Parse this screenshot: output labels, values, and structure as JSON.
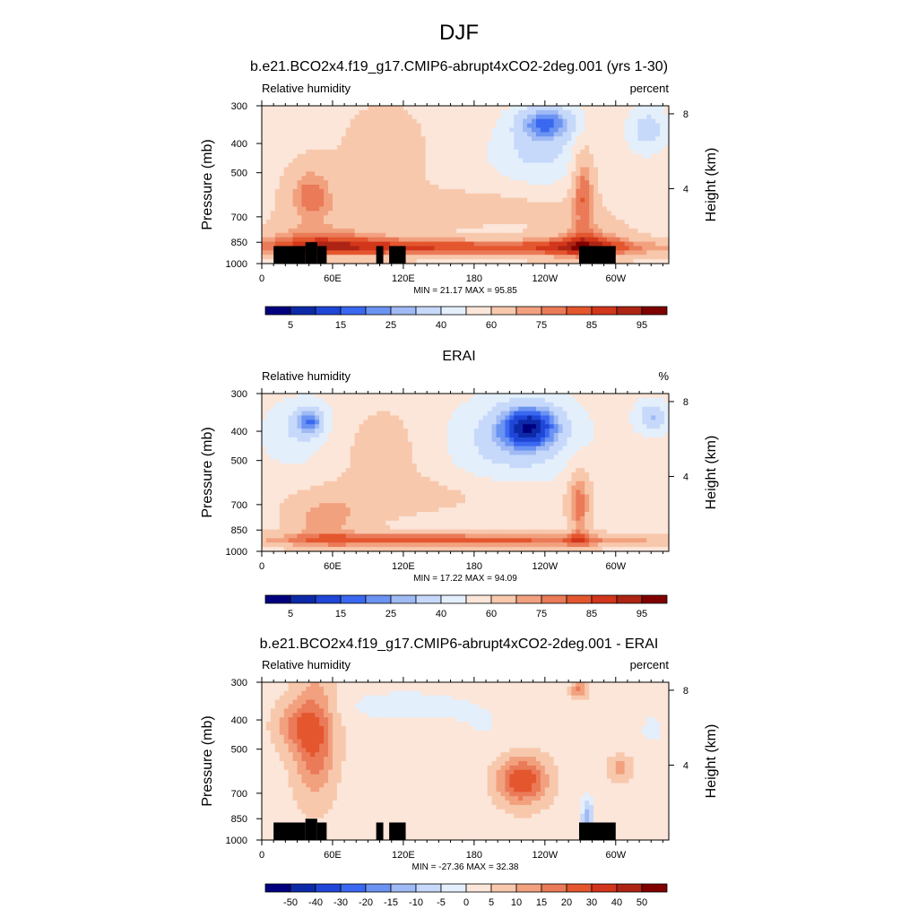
{
  "figure": {
    "title": "DJF"
  },
  "chart_data": [
    {
      "type": "heatmap",
      "title": "b.e21.BCO2x4.f19_g17.CMIP6-abrupt4xCO2-2deg.001 (yrs 1-30)",
      "left_label": "Relative humidity",
      "right_label": "percent",
      "ylabel": "Pressure (mb)",
      "y2label": "Height (km)",
      "xticks": [
        "0",
        "60E",
        "120E",
        "180",
        "120W",
        "60W"
      ],
      "xtick_values": [
        0,
        60,
        120,
        180,
        240,
        300
      ],
      "xlim": [
        0,
        345
      ],
      "yticks": [
        "300",
        "400",
        "500",
        "700",
        "850",
        "1000"
      ],
      "ytick_values": [
        300,
        400,
        500,
        700,
        850,
        1000
      ],
      "ylim": [
        1000,
        300
      ],
      "y2ticks": [
        "8",
        "4"
      ],
      "y2tick_values": [
        8,
        4
      ],
      "stats": "MIN =  21.17  MAX =  95.85",
      "min": 21.17,
      "max": 95.85,
      "colorbar_labels": [
        "5",
        "15",
        "25",
        "40",
        "60",
        "75",
        "85",
        "95"
      ],
      "colorbar_colors": [
        "#00007f",
        "#0c2aa8",
        "#1f46d6",
        "#3a68f0",
        "#6a93f2",
        "#9fbaf4",
        "#c7d9fa",
        "#e4effc",
        "#fbe6d9",
        "#f8c8ad",
        "#f2a17f",
        "#ea7a58",
        "#e4562e",
        "#d2361b",
        "#ad2414",
        "#800000"
      ],
      "terrain": true
    },
    {
      "type": "heatmap",
      "title": "ERAI",
      "left_label": "Relative humidity",
      "right_label": "%",
      "ylabel": "Pressure (mb)",
      "y2label": "Height (km)",
      "xticks": [
        "0",
        "60E",
        "120E",
        "180",
        "120W",
        "60W"
      ],
      "xtick_values": [
        0,
        60,
        120,
        180,
        240,
        300
      ],
      "xlim": [
        0,
        345
      ],
      "yticks": [
        "300",
        "400",
        "500",
        "700",
        "850",
        "1000"
      ],
      "ytick_values": [
        300,
        400,
        500,
        700,
        850,
        1000
      ],
      "ylim": [
        1000,
        300
      ],
      "y2ticks": [
        "8",
        "4"
      ],
      "y2tick_values": [
        8,
        4
      ],
      "stats": "MIN =  17.22  MAX =  94.09",
      "min": 17.22,
      "max": 94.09,
      "colorbar_labels": [
        "5",
        "15",
        "25",
        "40",
        "60",
        "75",
        "85",
        "95"
      ],
      "colorbar_colors": [
        "#00007f",
        "#0c2aa8",
        "#1f46d6",
        "#3a68f0",
        "#6a93f2",
        "#9fbaf4",
        "#c7d9fa",
        "#e4effc",
        "#fbe6d9",
        "#f8c8ad",
        "#f2a17f",
        "#ea7a58",
        "#e4562e",
        "#d2361b",
        "#ad2414",
        "#800000"
      ],
      "terrain": false
    },
    {
      "type": "heatmap",
      "title": "b.e21.BCO2x4.f19_g17.CMIP6-abrupt4xCO2-2deg.001 - ERAI",
      "left_label": "Relative humidity",
      "right_label": "percent",
      "ylabel": "Pressure (mb)",
      "y2label": "Height (km)",
      "xticks": [
        "0",
        "60E",
        "120E",
        "180",
        "120W",
        "60W"
      ],
      "xtick_values": [
        0,
        60,
        120,
        180,
        240,
        300
      ],
      "xlim": [
        0,
        345
      ],
      "yticks": [
        "300",
        "400",
        "500",
        "700",
        "850",
        "1000"
      ],
      "ytick_values": [
        300,
        400,
        500,
        700,
        850,
        1000
      ],
      "ylim": [
        1000,
        300
      ],
      "y2ticks": [
        "8",
        "4"
      ],
      "y2tick_values": [
        8,
        4
      ],
      "stats": "MIN = -27.36  MAX =  32.38",
      "min": -27.36,
      "max": 32.38,
      "colorbar_labels": [
        "-50",
        "-40",
        "-30",
        "-20",
        "-15",
        "-10",
        "-5",
        "0",
        "5",
        "10",
        "15",
        "20",
        "30",
        "40",
        "50"
      ],
      "colorbar_colors": [
        "#00007f",
        "#0c2aa8",
        "#1f46d6",
        "#3a68f0",
        "#6a93f2",
        "#9fbaf4",
        "#c7d9fa",
        "#e4effc",
        "#fbe6d9",
        "#f8c8ad",
        "#f2a17f",
        "#ea7a58",
        "#e4562e",
        "#d2361b",
        "#ad2414",
        "#800000"
      ],
      "terrain": true
    }
  ]
}
